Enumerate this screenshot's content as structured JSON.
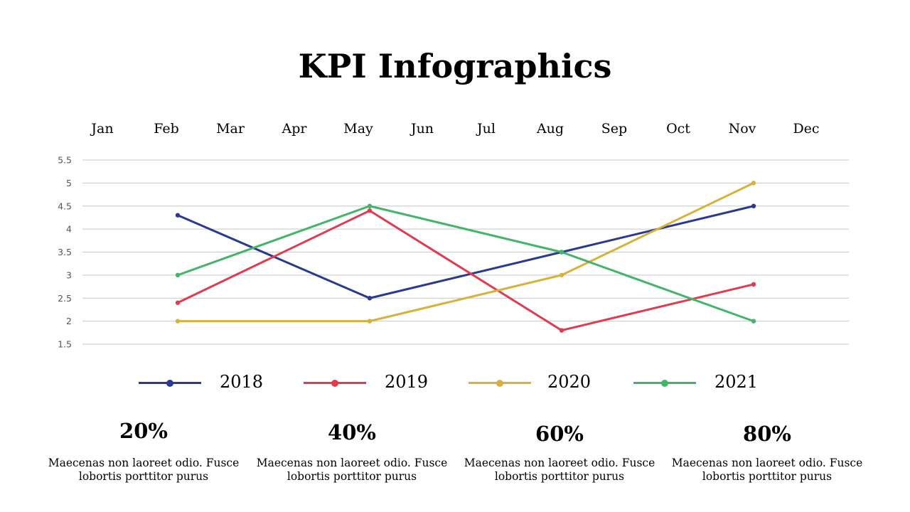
{
  "page": {
    "title": "KPI Infographics"
  },
  "chart_data": {
    "type": "line",
    "categories": [
      "Jan",
      "Feb",
      "Mar",
      "Apr",
      "May",
      "Jun",
      "Jul",
      "Aug",
      "Sep",
      "Oct",
      "Nov",
      "Dec"
    ],
    "y_ticks": [
      "5.5",
      "5",
      "4.5",
      "4",
      "3.5",
      "3",
      "2.5",
      "2",
      "1.5"
    ],
    "ylim": [
      1.5,
      5.5
    ],
    "grid": true,
    "legend": "bottom",
    "series": [
      {
        "name": "2018",
        "color": "#2b3990",
        "points": [
          [
            "Feb",
            4.3
          ],
          [
            "May",
            2.5
          ],
          [
            "Aug",
            3.5
          ],
          [
            "Nov",
            4.5
          ]
        ]
      },
      {
        "name": "2019",
        "color": "#e03c50",
        "points": [
          [
            "Feb",
            2.4
          ],
          [
            "May",
            4.4
          ],
          [
            "Aug",
            1.8
          ],
          [
            "Nov",
            2.8
          ]
        ]
      },
      {
        "name": "2020",
        "color": "#d8b13c",
        "points": [
          [
            "Feb",
            2.0
          ],
          [
            "May",
            2.0
          ],
          [
            "Aug",
            3.0
          ],
          [
            "Nov",
            5.0
          ]
        ]
      },
      {
        "name": "2021",
        "color": "#44b46a",
        "points": [
          [
            "Feb",
            3.0
          ],
          [
            "May",
            4.5
          ],
          [
            "Aug",
            3.5
          ],
          [
            "Nov",
            2.0
          ]
        ]
      }
    ]
  },
  "kpis": [
    {
      "value": "20%",
      "desc_line1": "Maecenas non laoreet odio. Fusce",
      "desc_line2": "lobortis porttitor purus"
    },
    {
      "value": "40%",
      "desc_line1": "Maecenas non laoreet odio. Fusce",
      "desc_line2": "lobortis porttitor purus"
    },
    {
      "value": "60%",
      "desc_line1": "Maecenas non laoreet odio. Fusce",
      "desc_line2": "lobortis porttitor purus"
    },
    {
      "value": "80%",
      "desc_line1": "Maecenas non laoreet odio. Fusce",
      "desc_line2": "lobortis porttitor purus"
    }
  ]
}
